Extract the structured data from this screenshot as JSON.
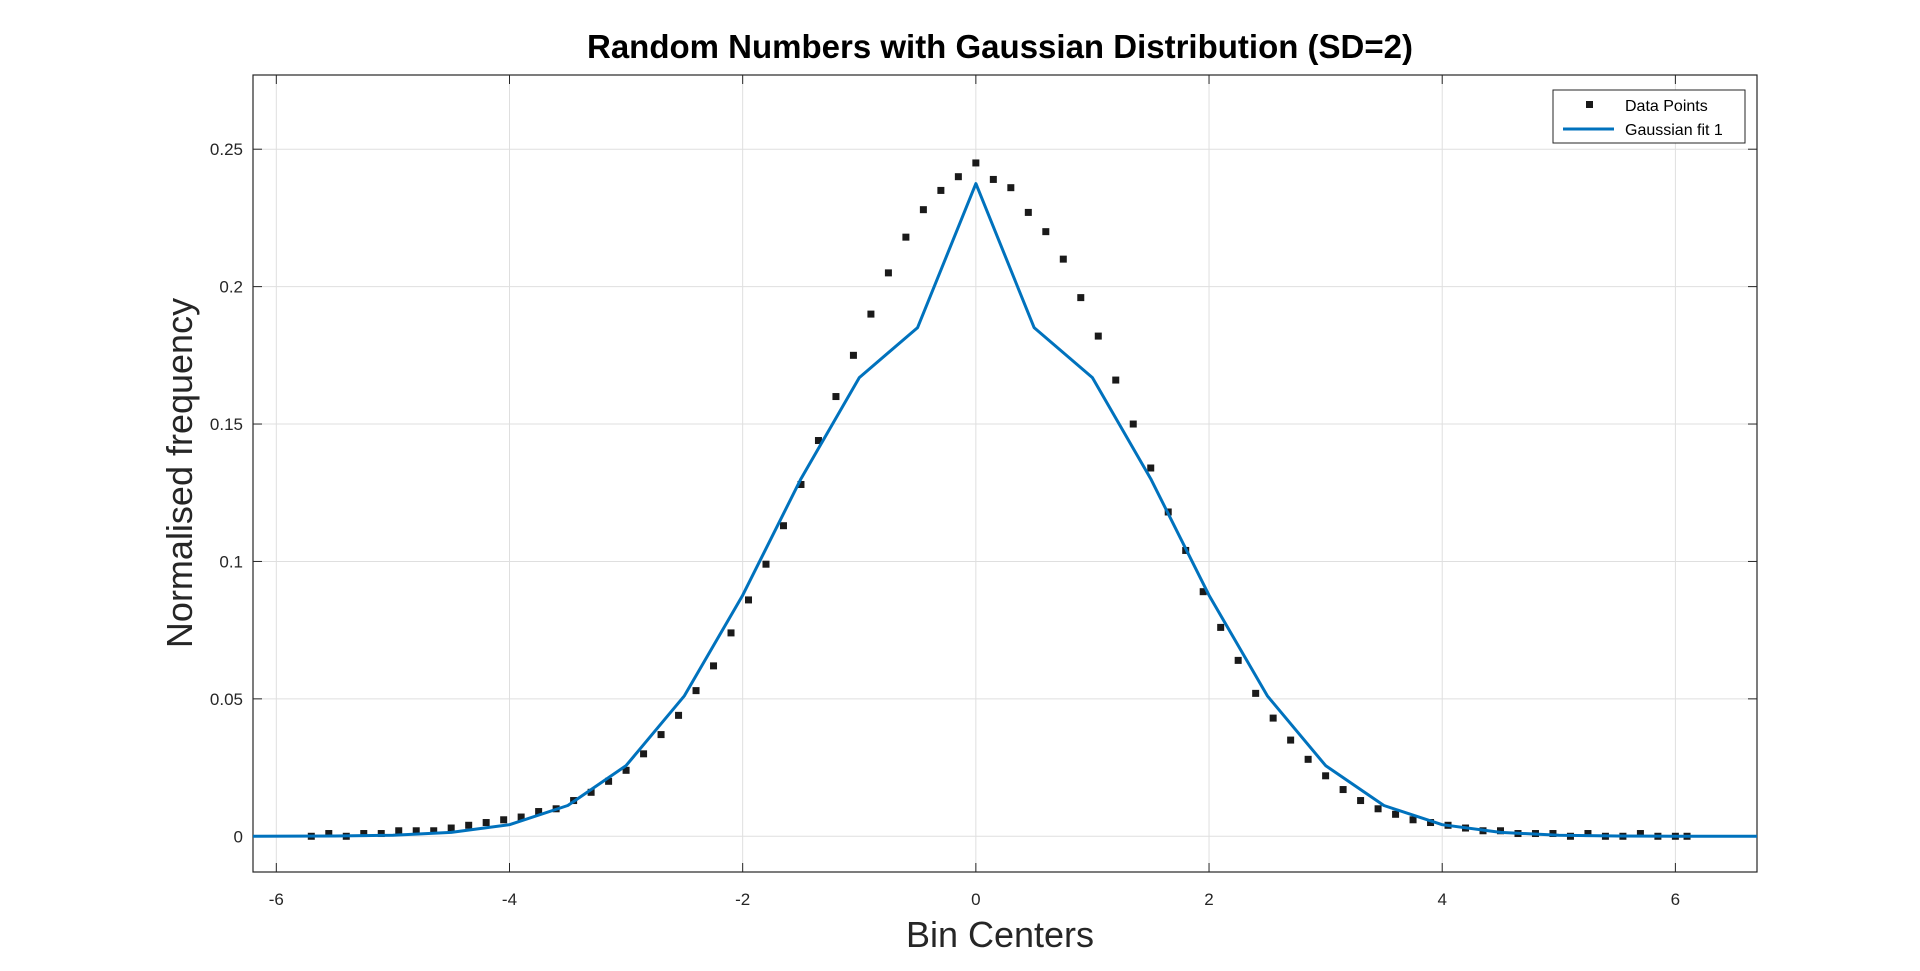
{
  "chart_data": {
    "type": "scatter",
    "title": "Random Numbers with Gaussian Distribution (SD=2)",
    "xlabel": "Bin Centers",
    "ylabel": "Normalised frequency",
    "xlim": [
      -6.2,
      6.7
    ],
    "ylim": [
      -0.013,
      0.277
    ],
    "xticks": [
      -6,
      -4,
      -2,
      0,
      2,
      4,
      6
    ],
    "yticks": [
      0,
      0.05,
      0.1,
      0.15,
      0.2,
      0.25
    ],
    "xtick_labels": [
      "-6",
      "-4",
      "-2",
      "0",
      "2",
      "4",
      "6"
    ],
    "ytick_labels": [
      "0",
      "0.05",
      "0.1",
      "0.15",
      "0.2",
      "0.25"
    ],
    "grid": true,
    "legend_position": "top-right",
    "series": [
      {
        "name": "Data Points",
        "kind": "scatter",
        "marker": "square",
        "color": "#1a1a1a",
        "x": [
          -5.7,
          -5.55,
          -5.4,
          -5.25,
          -5.1,
          -4.95,
          -4.8,
          -4.65,
          -4.5,
          -4.35,
          -4.2,
          -4.05,
          -3.9,
          -3.75,
          -3.6,
          -3.45,
          -3.3,
          -3.15,
          -3.0,
          -2.85,
          -2.7,
          -2.55,
          -2.4,
          -2.25,
          -2.1,
          -1.95,
          -1.8,
          -1.65,
          -1.5,
          -1.35,
          -1.2,
          -1.05,
          -0.9,
          -0.75,
          -0.6,
          -0.45,
          -0.3,
          -0.15,
          0.0,
          0.15,
          0.3,
          0.45,
          0.6,
          0.75,
          0.9,
          1.05,
          1.2,
          1.35,
          1.5,
          1.65,
          1.8,
          1.95,
          2.1,
          2.25,
          2.4,
          2.55,
          2.7,
          2.85,
          3.0,
          3.15,
          3.3,
          3.45,
          3.6,
          3.75,
          3.9,
          4.05,
          4.2,
          4.35,
          4.5,
          4.65,
          4.8,
          4.95,
          5.1,
          5.25,
          5.4,
          5.55,
          5.7,
          5.85,
          6.0,
          6.1
        ],
        "y": [
          0.0,
          0.001,
          0.0,
          0.001,
          0.001,
          0.002,
          0.002,
          0.002,
          0.003,
          0.004,
          0.005,
          0.006,
          0.007,
          0.009,
          0.01,
          0.013,
          0.016,
          0.02,
          0.024,
          0.03,
          0.037,
          0.044,
          0.053,
          0.062,
          0.074,
          0.086,
          0.099,
          0.113,
          0.128,
          0.144,
          0.16,
          0.175,
          0.19,
          0.205,
          0.218,
          0.228,
          0.235,
          0.24,
          0.245,
          0.239,
          0.236,
          0.227,
          0.22,
          0.21,
          0.196,
          0.182,
          0.166,
          0.15,
          0.134,
          0.118,
          0.104,
          0.089,
          0.076,
          0.064,
          0.052,
          0.043,
          0.035,
          0.028,
          0.022,
          0.017,
          0.013,
          0.01,
          0.008,
          0.006,
          0.005,
          0.004,
          0.003,
          0.002,
          0.002,
          0.001,
          0.001,
          0.001,
          0.0,
          0.001,
          0.0,
          0.0,
          0.001,
          0.0,
          0.0,
          0.0
        ]
      },
      {
        "name": "Gaussian fit 1",
        "kind": "line",
        "color": "#0072bd",
        "x": [
          -6.2,
          -5.5,
          -5.0,
          -4.5,
          -4.0,
          -3.5,
          -3.0,
          -2.5,
          -2.0,
          -1.5,
          -1.0,
          -0.5,
          0.0,
          0.5,
          1.0,
          1.5,
          2.0,
          2.5,
          3.0,
          3.5,
          4.0,
          4.5,
          5.0,
          5.5,
          6.0,
          6.7
        ],
        "y": [
          0.0,
          0.0001,
          0.0004,
          0.0014,
          0.0042,
          0.0112,
          0.0257,
          0.0511,
          0.0877,
          0.1301,
          0.1669,
          0.1851,
          0.2375,
          0.1851,
          0.1669,
          0.1301,
          0.0877,
          0.0511,
          0.0257,
          0.0112,
          0.0042,
          0.0014,
          0.0004,
          0.0001,
          0.0,
          0.0
        ]
      }
    ]
  }
}
